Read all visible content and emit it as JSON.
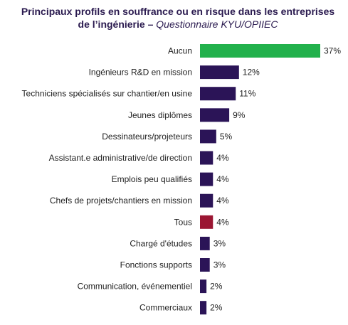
{
  "chart_data": {
    "type": "bar",
    "orientation": "horizontal",
    "title": "Principaux profils en souffrance ou en risque dans les entreprises de l’ingénierie",
    "source": "Questionnaire KYU/OPIIEC",
    "categories": [
      "Aucun",
      "Ingénieurs R&D en mission",
      "Techniciens spécialisés sur chantier/en usine",
      "Jeunes diplômes",
      "Dessinateurs/projeteurs",
      "Assistant.e administrative/de direction",
      "Emplois peu qualifiés",
      "Chefs de projets/chantiers en mission",
      "Tous",
      "Chargé d'études",
      "Fonctions supports",
      "Communication, événementiel",
      "Commerciaux"
    ],
    "values": [
      37,
      12,
      11,
      9,
      5,
      4,
      4,
      4,
      4,
      3,
      3,
      2,
      2
    ],
    "value_labels": [
      "37%",
      "12%",
      "11%",
      "9%",
      "5%",
      "4%",
      "4%",
      "4%",
      "4%",
      "3%",
      "3%",
      "2%",
      "2%"
    ],
    "unit": "%",
    "colors": {
      "default": "#2b1457",
      "Aucun": "#22b14c",
      "Tous": "#9b1633"
    },
    "xlim": [
      0,
      37
    ],
    "grid": false,
    "legend": "none"
  }
}
